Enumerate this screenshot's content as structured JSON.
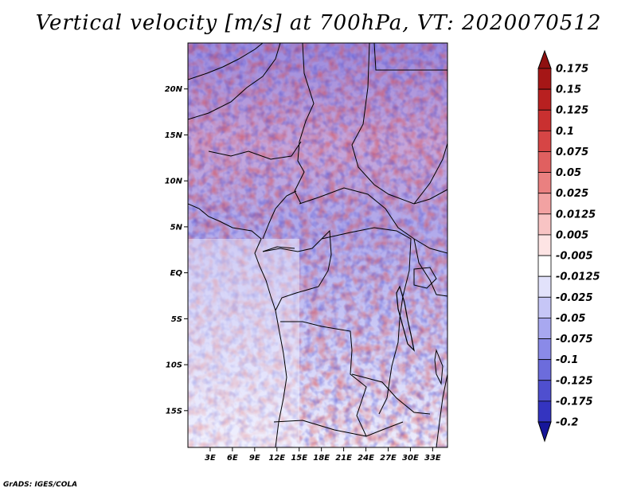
{
  "title": "Vertical velocity [m/s] at 700hPa, VT: 2020070512",
  "credit": "GrADS: IGES/COLA",
  "map": {
    "lon_range": [
      0,
      35
    ],
    "lat_range": [
      -19,
      25
    ],
    "lat_ticks": [
      {
        "value": 20,
        "label": "20N"
      },
      {
        "value": 15,
        "label": "15N"
      },
      {
        "value": 10,
        "label": "10N"
      },
      {
        "value": 5,
        "label": "5N"
      },
      {
        "value": 0,
        "label": "EQ"
      },
      {
        "value": -5,
        "label": "5S"
      },
      {
        "value": -10,
        "label": "10S"
      },
      {
        "value": -15,
        "label": "15S"
      }
    ],
    "lon_ticks": [
      {
        "value": 3,
        "label": "3E"
      },
      {
        "value": 6,
        "label": "6E"
      },
      {
        "value": 9,
        "label": "9E"
      },
      {
        "value": 12,
        "label": "12E"
      },
      {
        "value": 15,
        "label": "15E"
      },
      {
        "value": 18,
        "label": "18E"
      },
      {
        "value": 21,
        "label": "21E"
      },
      {
        "value": 24,
        "label": "24E"
      },
      {
        "value": 27,
        "label": "27E"
      },
      {
        "value": 30,
        "label": "30E"
      },
      {
        "value": 33,
        "label": "33E"
      }
    ]
  },
  "colorbar": {
    "levels": [
      {
        "label": "0.175",
        "color": "#a51616"
      },
      {
        "label": "0.15",
        "color": "#b82020"
      },
      {
        "label": "0.125",
        "color": "#c93030"
      },
      {
        "label": "0.1",
        "color": "#d64545"
      },
      {
        "label": "0.075",
        "color": "#e06060"
      },
      {
        "label": "0.05",
        "color": "#ea8080"
      },
      {
        "label": "0.025",
        "color": "#f2a2a2"
      },
      {
        "label": "0.0125",
        "color": "#f8c4c4"
      },
      {
        "label": "0.005",
        "color": "#fde4e4"
      },
      {
        "label": "-0.005",
        "color": "#ffffff"
      },
      {
        "label": "-0.0125",
        "color": "#e2e2fb"
      },
      {
        "label": "-0.025",
        "color": "#c6c6f6"
      },
      {
        "label": "-0.05",
        "color": "#a8a8f0"
      },
      {
        "label": "-0.075",
        "color": "#8a8ae8"
      },
      {
        "label": "-0.1",
        "color": "#6c6cdc"
      },
      {
        "label": "-0.125",
        "color": "#4f4fcf"
      },
      {
        "label": "-0.175",
        "color": "#3434c0"
      },
      {
        "label": "-0.2",
        "color": "#2020ad"
      }
    ],
    "top_color": "#8f1010",
    "bottom_color": "#16169a"
  }
}
